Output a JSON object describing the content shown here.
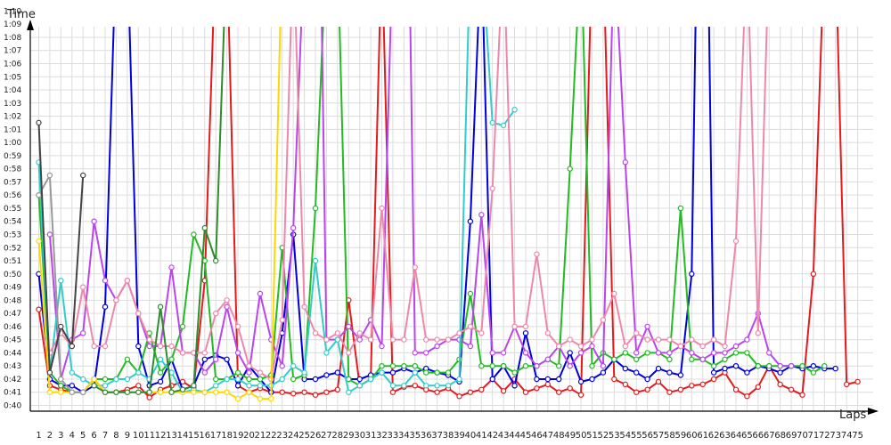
{
  "chart_data": {
    "type": "line",
    "ylabel": "Time",
    "xlabel": "Laps",
    "y_ticks": [
      "0:40",
      "0:41",
      "0:42",
      "0:43",
      "0:44",
      "0:45",
      "0:46",
      "0:47",
      "0:48",
      "0:49",
      "0:50",
      "0:51",
      "0:52",
      "0:53",
      "0:54",
      "0:55",
      "0:56",
      "0:57",
      "0:58",
      "0:59",
      "1:00",
      "1:01",
      "1:02",
      "1:03",
      "1:04",
      "1:05",
      "1:06",
      "1:07",
      "1:08",
      "1:09",
      "1:10"
    ],
    "x_ticks": [
      "1",
      "2",
      "3",
      "4",
      "5",
      "6",
      "7",
      "8",
      "9",
      "10",
      "11",
      "12",
      "13",
      "14",
      "15",
      "16",
      "17",
      "18",
      "19",
      "20",
      "21",
      "22",
      "23",
      "24",
      "25",
      "26",
      "27",
      "28",
      "29",
      "30",
      "31",
      "32",
      "33",
      "34",
      "35",
      "36",
      "37",
      "38",
      "39",
      "40",
      "41",
      "42",
      "43",
      "44",
      "45",
      "46",
      "47",
      "48",
      "49",
      "50",
      "51",
      "52",
      "53",
      "54",
      "55",
      "56",
      "57",
      "58",
      "59",
      "60",
      "61",
      "62",
      "63",
      "64",
      "65",
      "66",
      "67",
      "68",
      "69",
      "70",
      "71",
      "72",
      "73",
      "74",
      "75"
    ],
    "xlim": [
      1,
      75
    ],
    "ylim_seconds": [
      39.5,
      71.5
    ],
    "grid": true,
    "series": [
      {
        "color": "#e41a1c",
        "start": 1,
        "values": [
          47.3,
          41.5,
          41.2,
          41.0,
          41.0,
          42.0,
          41.0,
          41.0,
          41.2,
          41.5,
          40.6,
          41.2,
          41.5,
          41.8,
          41.3,
          49.5,
          75,
          75,
          41.5,
          41.0,
          41.3,
          41.0,
          41.0,
          40.9,
          41.0,
          40.8,
          41.0,
          41.2,
          48.0,
          41.5,
          42.0,
          75,
          41.0,
          41.4,
          41.5,
          41.2,
          41.0,
          41.3,
          40.7,
          41.0,
          41.2,
          42.0,
          41.1,
          42.0,
          41.0,
          41.3,
          41.6,
          41.0,
          41.3,
          40.8,
          75,
          75,
          42.0,
          41.6,
          41.0,
          41.2,
          41.8,
          41.0,
          41.2,
          41.5,
          41.6,
          42.0,
          42.5,
          41.2,
          40.7,
          41.4,
          43.0,
          41.6,
          41.2,
          40.8,
          50.0,
          75,
          75,
          41.6,
          41.8
        ]
      },
      {
        "color": "#0000dd",
        "start": 1,
        "values": [
          50.0,
          42.0,
          41.5,
          41.5,
          41.0,
          41.5,
          47.5,
          75,
          75,
          44.5,
          41.5,
          41.8,
          43.5,
          41.2,
          41.5,
          43.5,
          43.8,
          43.5,
          41.5,
          43.0,
          42.0,
          41.0,
          45.5,
          53.0,
          42.0,
          42.0,
          42.3,
          42.5,
          42.0,
          42.0,
          42.3,
          42.5,
          42.5,
          42.8,
          42.5,
          42.8,
          42.5,
          42.3,
          41.8,
          54.0,
          75,
          42.0,
          43.0,
          41.5,
          45.5,
          42.0,
          42.0,
          42.0,
          44.0,
          41.8,
          42.0,
          42.5,
          43.5,
          42.8,
          42.5,
          42.0,
          42.8,
          42.5,
          42.3,
          50.0,
          104.5,
          42.5,
          42.8,
          43.0,
          42.5,
          43.0,
          42.8,
          42.5,
          43.0,
          42.8,
          43.0,
          42.8,
          42.8
        ]
      },
      {
        "color": "#22bb22",
        "start": 1,
        "values": [
          56.0,
          42.5,
          41.5,
          41.0,
          41.0,
          42.0,
          42.0,
          42.0,
          43.5,
          42.5,
          45.5,
          42.5,
          43.5,
          46.0,
          53.0,
          51.0,
          42.0,
          42.0,
          42.5,
          42.0,
          42.0,
          42.3,
          52.0,
          42.0,
          42.3,
          55.0,
          75,
          75,
          42.0,
          41.5,
          42.0,
          43.0,
          43.0,
          43.0,
          43.0,
          42.5,
          42.5,
          42.5,
          43.5,
          48.5,
          43.0,
          43.0,
          43.0,
          42.5,
          43.0,
          43.0,
          43.5,
          43.0,
          58.0,
          75,
          43.0,
          44.0,
          43.5,
          44.0,
          43.5,
          44.0,
          44.0,
          43.5,
          55.0,
          43.5,
          43.5,
          43.0,
          43.5,
          44.0,
          44.0,
          43.0,
          43.0,
          43.0,
          43.0,
          43.0,
          42.5,
          43.0
        ]
      },
      {
        "color": "#bb44ee",
        "start": 2,
        "values": [
          53.0,
          42.0,
          45.0,
          45.5,
          54.0,
          49.5,
          48.0,
          49.5,
          47.0,
          44.5,
          44.5,
          50.5,
          44.0,
          44.0,
          42.5,
          43.5,
          47.5,
          44.0,
          42.5,
          48.5,
          45.0,
          43.0,
          53.5,
          75,
          102.0,
          45.0,
          45.0,
          46.0,
          45.0,
          46.5,
          44.5,
          75,
          102.5,
          44.0,
          44.0,
          44.5,
          45.0,
          45.0,
          44.5,
          54.5,
          44.0,
          44.0,
          46.0,
          44.0,
          43.0,
          43.5,
          44.5,
          43.0,
          44.0,
          44.5,
          43.0,
          75,
          58.5,
          44.0,
          46.0,
          44.0,
          44.0,
          44.5,
          44.0,
          43.5,
          44.0,
          44.0,
          44.5,
          45.0,
          47.0,
          44.0,
          43.0,
          43.0
        ]
      },
      {
        "color": "#33cccc",
        "start": 1,
        "values": [
          58.5,
          42.5,
          49.5,
          42.5,
          42.0,
          41.5,
          41.5,
          42.0,
          42.0,
          42.5,
          42.0,
          43.5,
          42.5,
          41.0,
          41.2,
          41.0,
          41.5,
          42.0,
          42.0,
          41.5,
          41.5,
          41.5,
          42.0,
          43.0,
          42.5,
          51.0,
          44.0,
          45.0,
          41.0,
          41.5,
          42.0,
          42.5,
          41.5,
          41.5,
          42.5,
          41.5,
          41.5,
          41.5,
          42.0,
          75,
          75,
          61.5,
          61.3,
          62.5
        ]
      },
      {
        "color": "#ee88aa",
        "start": 2,
        "values": [
          44.0,
          45.5,
          44.5,
          49.0,
          44.5,
          44.5,
          48.0,
          49.5,
          47.0,
          45.0,
          44.5,
          44.5,
          44.0,
          44.0,
          44.0,
          47.0,
          48.0,
          46.0,
          43.0,
          42.5,
          42.0,
          46.5,
          75,
          47.5,
          45.5,
          45.0,
          45.5,
          44.0,
          45.5,
          45.0,
          55.0,
          45.0,
          45.0,
          50.5,
          45.0,
          45.0,
          45.0,
          45.5,
          46.0,
          45.5,
          56.5,
          75,
          46.0,
          46.0,
          51.5,
          45.5,
          44.5,
          45.0,
          44.5,
          45.0,
          46.5,
          48.5,
          44.5,
          45.5,
          45.0,
          45.0,
          45.0,
          44.5,
          45.0,
          44.5,
          45.0,
          44.5,
          52.5,
          75,
          45.5,
          75
        ]
      },
      {
        "color": "#ffd700",
        "start": 1,
        "values": [
          52.5,
          41.0,
          41.0,
          41.0,
          41.0,
          42.0,
          41.0,
          41.0,
          41.0,
          41.0,
          41.0,
          41.0,
          41.0,
          41.0,
          41.0,
          41.0,
          41.0,
          41.0,
          40.5,
          41.0,
          40.5,
          40.5,
          75
        ]
      },
      {
        "color": "#999999",
        "start": 1,
        "values": [
          56.0,
          57.5,
          42.0,
          41.0,
          41.0
        ]
      },
      {
        "color": "#444444",
        "start": 1,
        "values": [
          61.5,
          42.5,
          46.0,
          44.5,
          57.5
        ]
      },
      {
        "color": "#2e8b2e",
        "start": 6,
        "values": [
          41.5,
          41.0,
          41.0,
          41.0,
          41.0,
          41.0,
          47.5,
          41.0,
          41.2,
          41.5,
          53.5,
          51.0,
          75,
          75
        ]
      }
    ]
  }
}
